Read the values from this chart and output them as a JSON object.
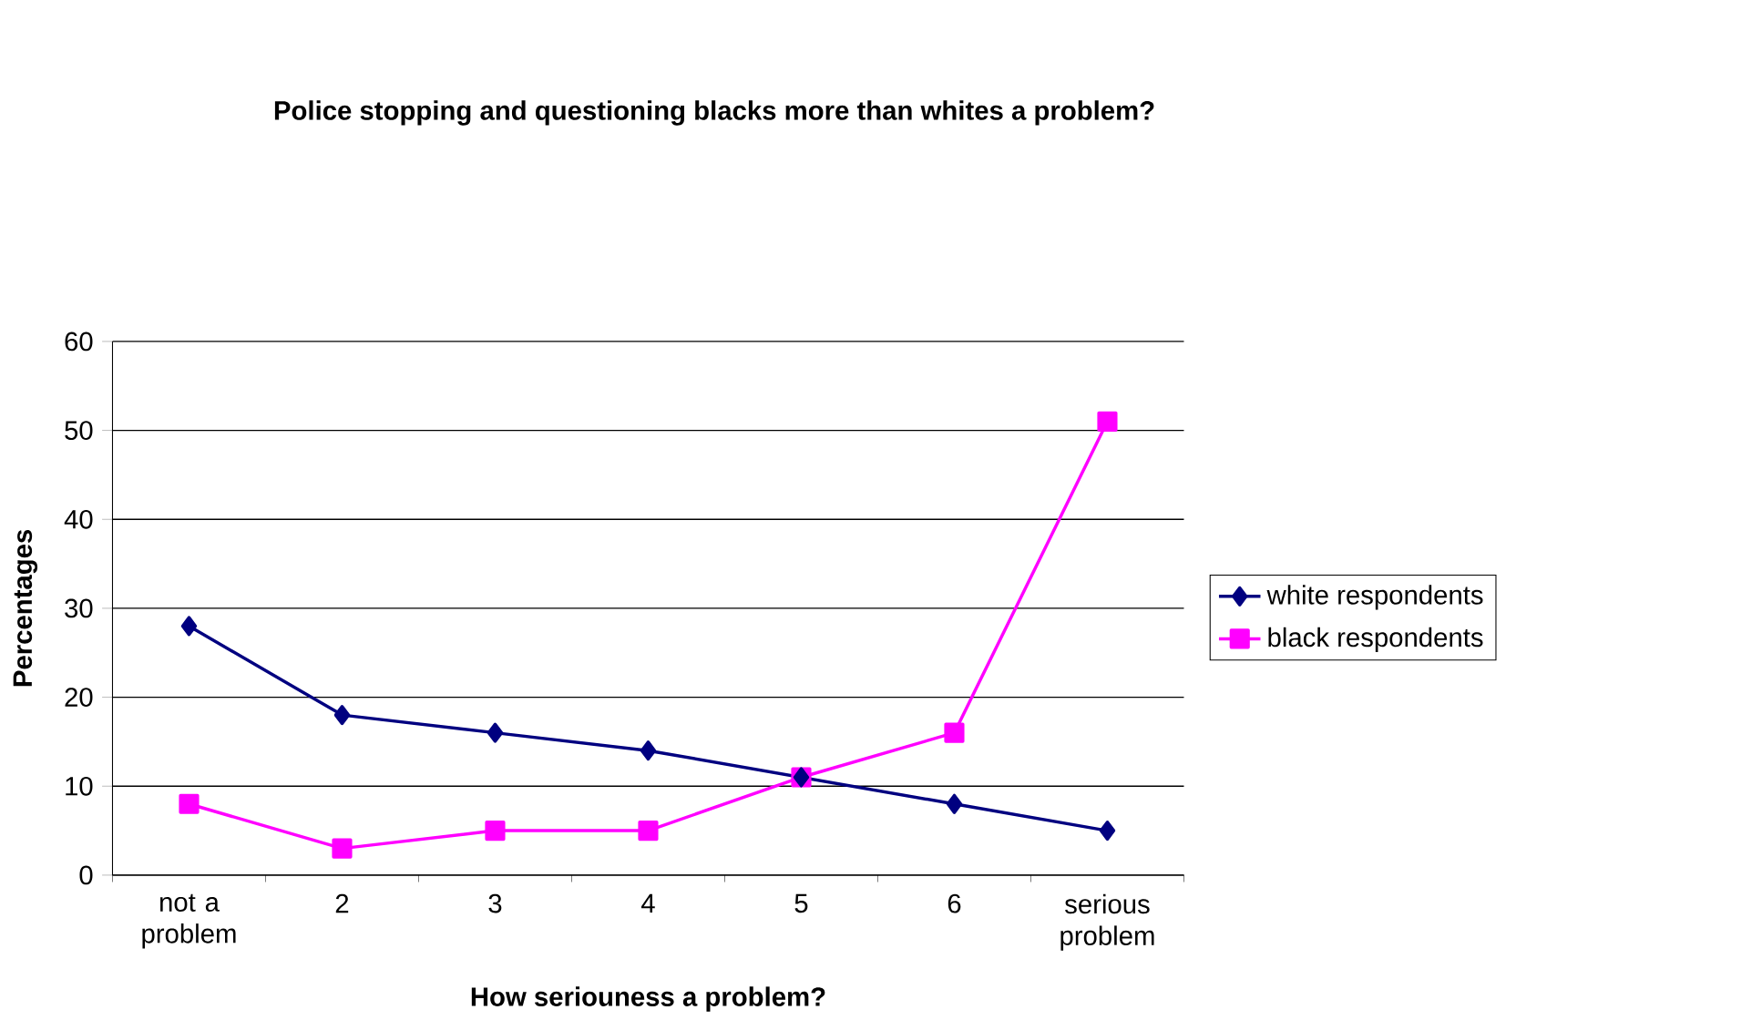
{
  "chart_data": {
    "type": "line",
    "title": "Police stopping and questioning blacks more than whites a problem?",
    "xlabel": "How seriouness a problem?",
    "ylabel": "Percentages",
    "categories": [
      "not a problem",
      "2",
      "3",
      "4",
      "5",
      "6",
      "serious problem"
    ],
    "series": [
      {
        "name": "white respondents",
        "color": "#000080",
        "marker": "diamond",
        "values": [
          28,
          18,
          16,
          14,
          11,
          8,
          5
        ]
      },
      {
        "name": "black respondents",
        "color": "#ff00ff",
        "marker": "square",
        "values": [
          8,
          3,
          5,
          5,
          11,
          16,
          51
        ]
      }
    ],
    "ylim": [
      0,
      60
    ],
    "yticks": [
      0,
      10,
      20,
      30,
      40,
      50,
      60
    ],
    "grid": "y",
    "legend": "right",
    "line_style": "solid"
  }
}
